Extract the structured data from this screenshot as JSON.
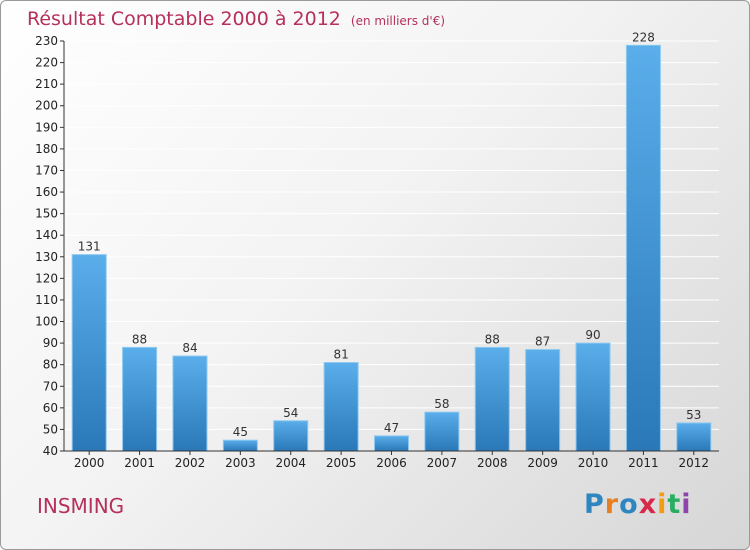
{
  "title": "Résultat Comptable 2000 à 2012",
  "subtitle": "(en milliers d'€)",
  "commune": "INSMING",
  "brand": {
    "text": "Proxiti",
    "letters": [
      "P",
      "r",
      "o",
      "x",
      "i",
      "t",
      "i"
    ],
    "colors": [
      "#2e86c1",
      "#e67e22",
      "#2e86c1",
      "#d8284a",
      "#f39c12",
      "#27ae60",
      "#8e44ad"
    ]
  },
  "colors": {
    "bar": "#4a9fe0",
    "bar_dark": "#2f7fc0",
    "title": "#b5305a",
    "grid": "#ffffff"
  },
  "chart_data": {
    "type": "bar",
    "categories": [
      "2000",
      "2001",
      "2002",
      "2003",
      "2004",
      "2005",
      "2006",
      "2007",
      "2008",
      "2009",
      "2010",
      "2011",
      "2012"
    ],
    "values": [
      131,
      88,
      84,
      45,
      54,
      81,
      47,
      58,
      88,
      87,
      90,
      228,
      53
    ],
    "data_labels": [
      "131",
      "88",
      "84",
      "45",
      "54",
      "81",
      "47",
      "58",
      "88",
      "87",
      "90",
      "228",
      "53"
    ],
    "ylim": [
      40,
      230
    ],
    "yticks": [
      "40",
      "50",
      "60",
      "70",
      "80",
      "90",
      "100",
      "110",
      "120",
      "130",
      "140",
      "150",
      "160",
      "170",
      "180",
      "190",
      "200",
      "210",
      "220",
      "230"
    ],
    "grid": true,
    "xlabel": "",
    "ylabel": ""
  }
}
